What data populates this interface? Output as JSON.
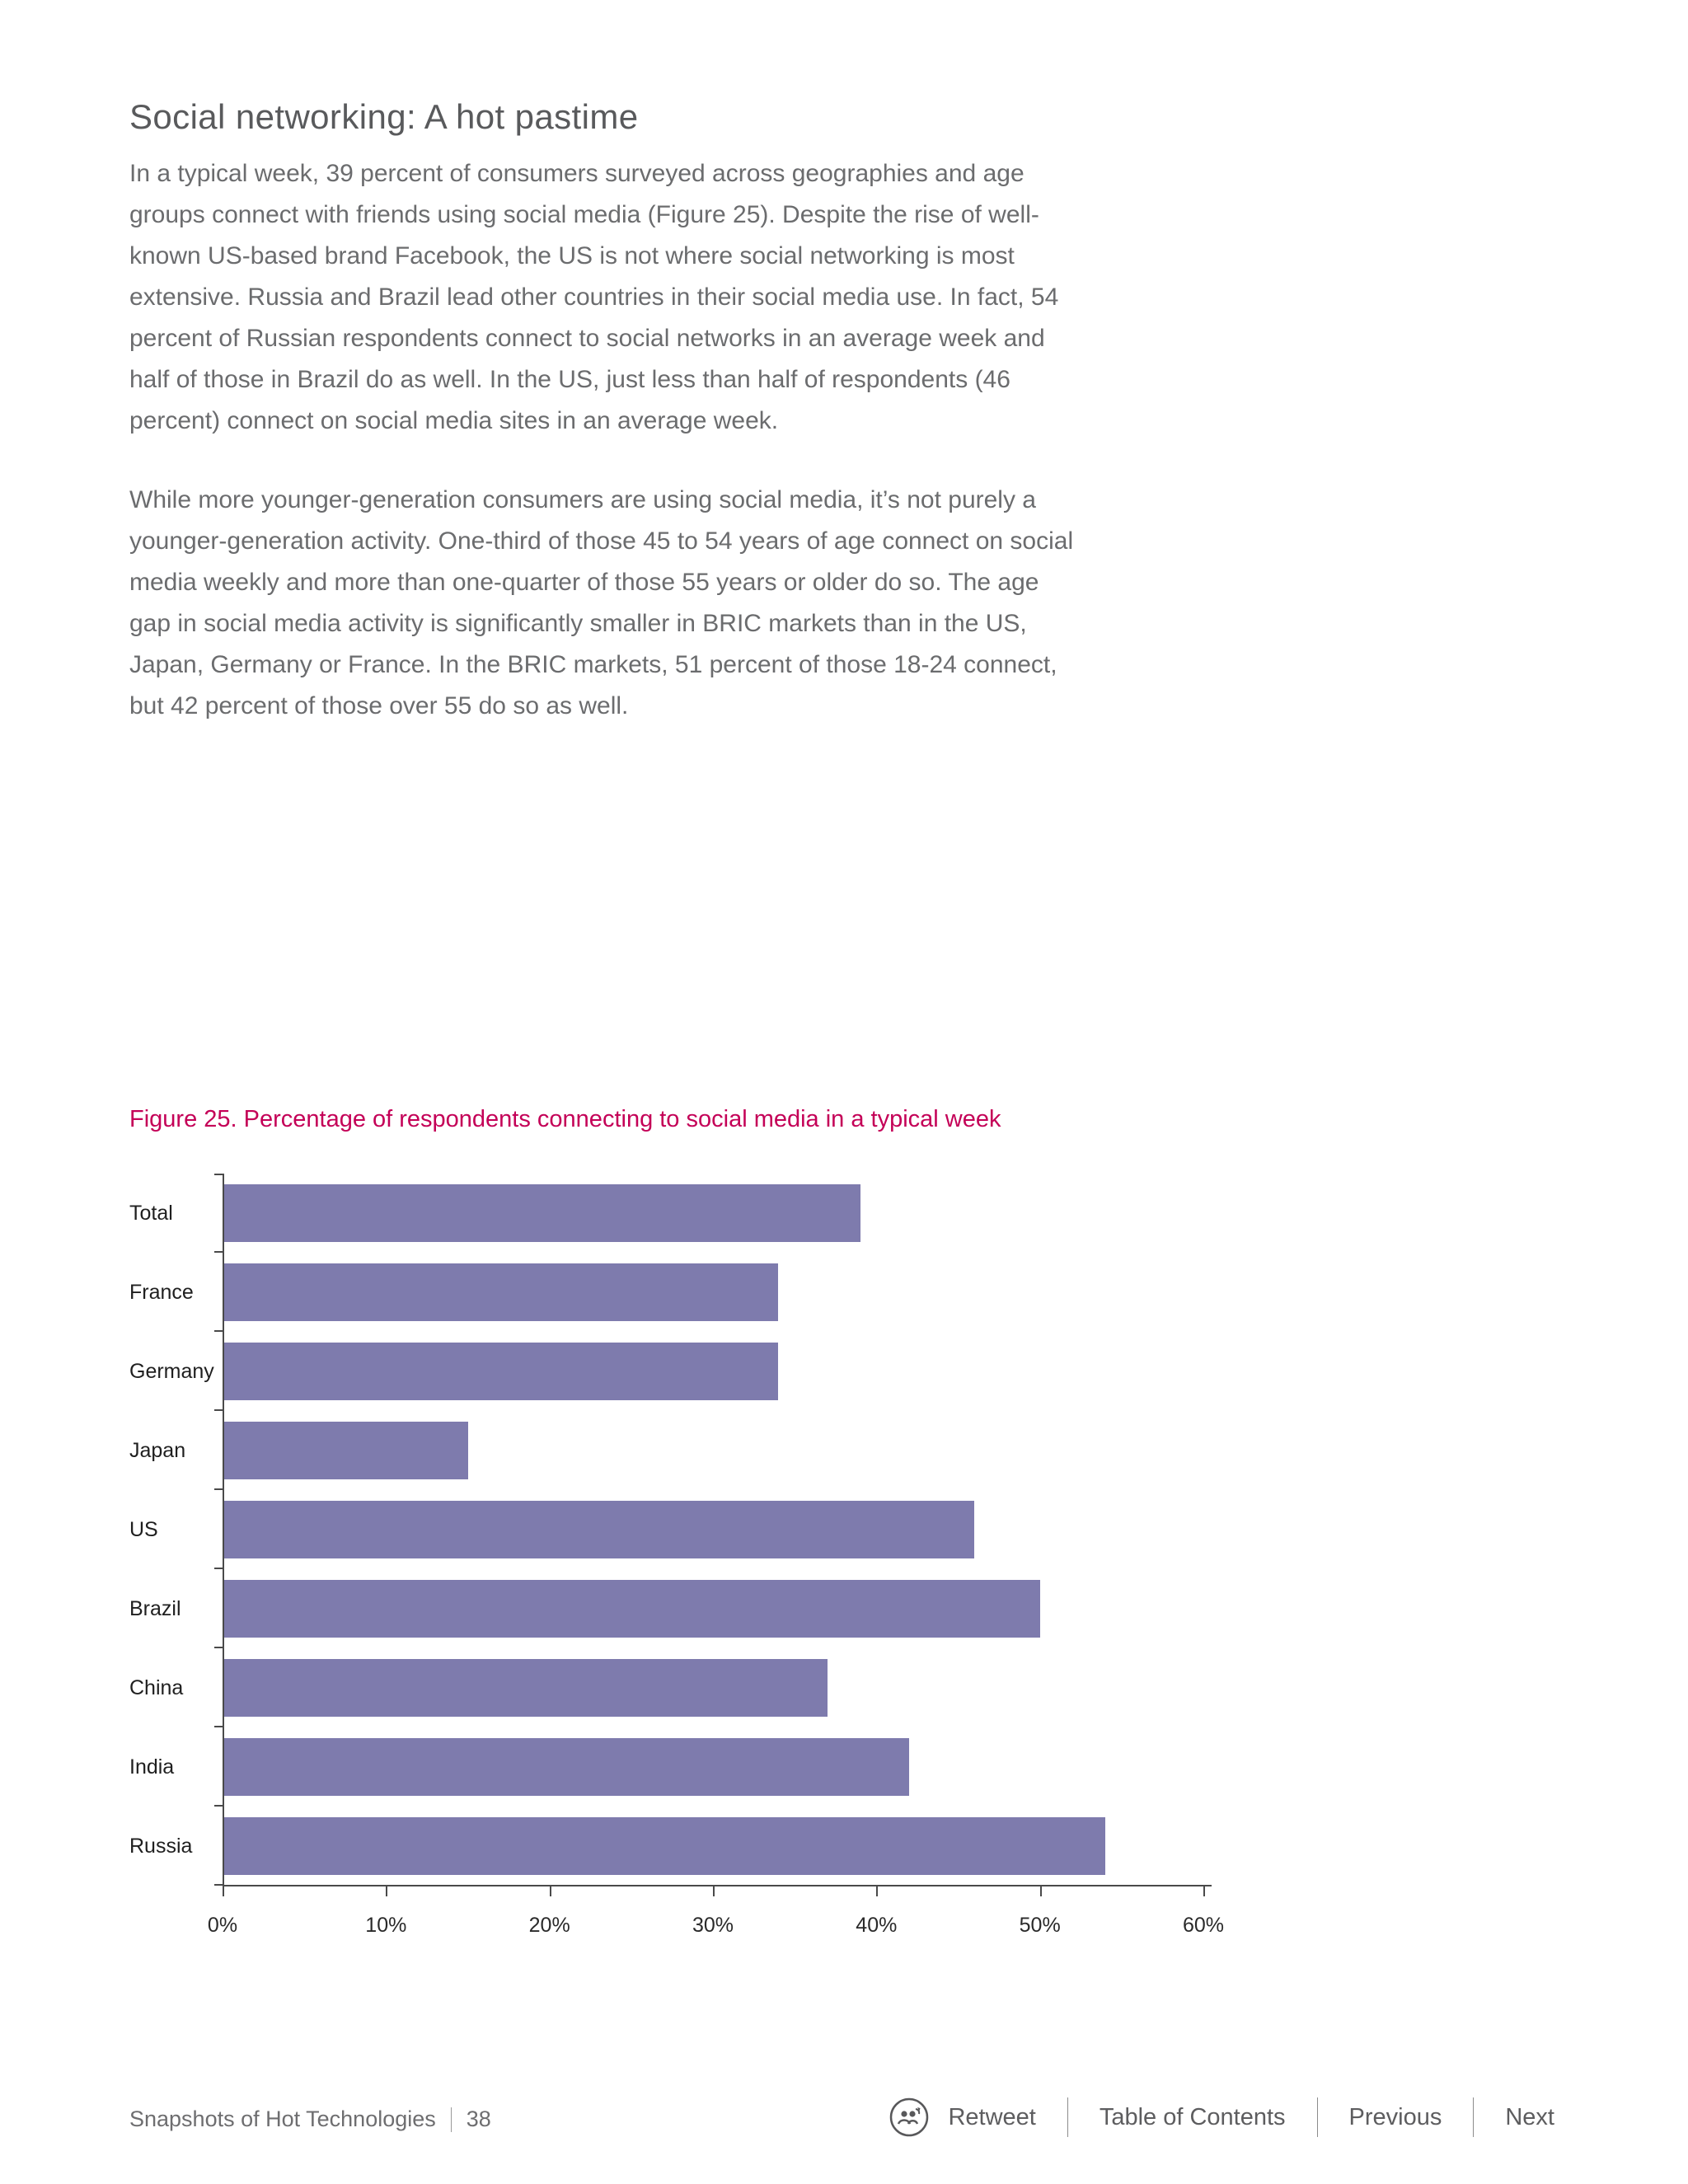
{
  "page": {
    "heading": "Social networking: A hot pastime",
    "paragraphs": [
      "In a typical week, 39 percent of consumers surveyed across geographies and age groups connect with friends using social media (Figure 25). Despite the rise of well-known US-based brand Facebook, the US is not where social networking is most extensive. Russia and Brazil lead other countries in their social media use. In fact, 54 percent of Russian respondents connect to social networks in an average week and half of those in Brazil do as well. In the US, just less than half of respondents (46 percent) connect on social media sites in an average week.",
      "While more younger-generation consumers are using social media, it’s not purely a younger-generation activity. One-third of those 45 to 54 years of age connect on social media weekly and more than one-quarter of those 55 years or older do so. The age gap in social media activity is significantly smaller in BRIC markets than in the US, Japan, Germany or France. In the BRIC markets, 51 percent of those 18-24 connect, but 42 percent of those over 55 do so as well."
    ],
    "figure_caption": "Figure 25. Percentage of respondents connecting to social media in a typical week",
    "footer": {
      "left": "Snapshots of Hot Technologies",
      "page_number": "38",
      "retweet_label": "Retweet",
      "toc_label": "Table of Contents",
      "previous_label": "Previous",
      "next_label": "Next"
    }
  },
  "chart_data": {
    "type": "bar",
    "orientation": "horizontal",
    "title": "Figure 25. Percentage of respondents connecting to social media in a typical week",
    "categories": [
      "Total",
      "France",
      "Germany",
      "Japan",
      "US",
      "Brazil",
      "China",
      "India",
      "Russia"
    ],
    "values": [
      39,
      34,
      34,
      15,
      46,
      50,
      37,
      42,
      54
    ],
    "x_ticks": [
      "0%",
      "10%",
      "20%",
      "30%",
      "40%",
      "50%",
      "60%"
    ],
    "xlim": [
      0,
      60
    ],
    "grid": false,
    "legend": false,
    "bar_color": "#7e7bad"
  },
  "colors": {
    "caption_accent": "#c40057",
    "bar": "#7e7bad",
    "axis": "#4a4a4a",
    "body_text": "#6b6c6e"
  }
}
